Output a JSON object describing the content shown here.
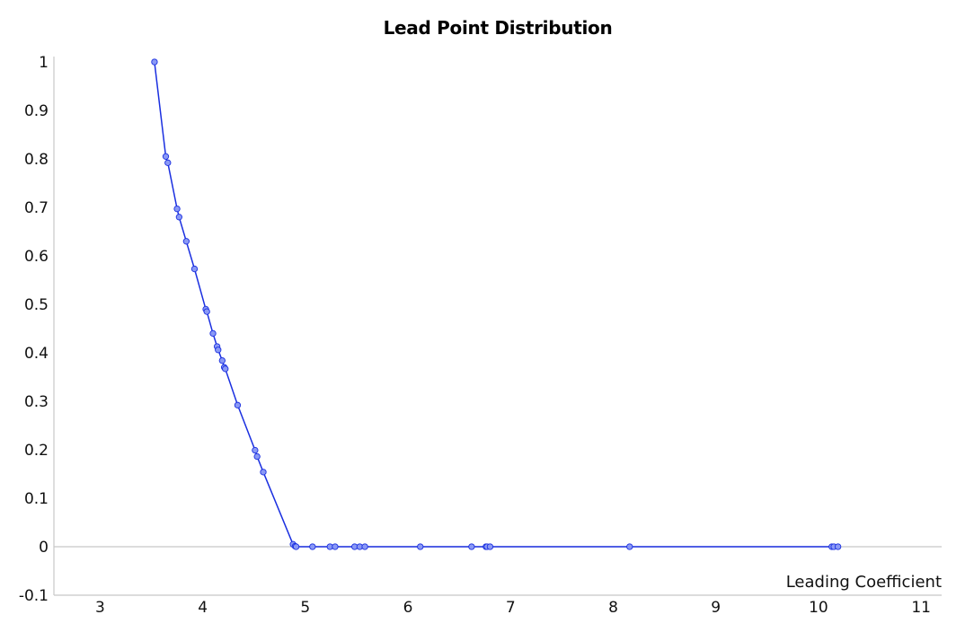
{
  "chart_data": {
    "type": "line",
    "title": "Lead Point Distribution",
    "xlabel": "Leading Coefficient",
    "ylabel": "",
    "xlim": [
      2.55,
      11.2
    ],
    "ylim": [
      -0.1,
      1.0
    ],
    "xticks": [
      "3",
      "4",
      "5",
      "6",
      "7",
      "8",
      "9",
      "10",
      "11"
    ],
    "yticks": [
      "1",
      "0.9",
      "0.8",
      "0.7",
      "0.6",
      "0.5",
      "0.4",
      "0.3",
      "0.2",
      "0.1",
      "0",
      "-0.1"
    ],
    "grid": false,
    "legend": "none",
    "markers": true,
    "series": [
      {
        "color": "#1a2fe0",
        "marker_color": "#8a99f5",
        "x": [
          3.53,
          3.64,
          3.66,
          3.75,
          3.77,
          3.84,
          3.92,
          4.03,
          4.04,
          4.1,
          4.14,
          4.15,
          4.19,
          4.21,
          4.22,
          4.34,
          4.51,
          4.53,
          4.59,
          4.88,
          4.9,
          4.91,
          5.07,
          5.24,
          5.29,
          5.48,
          5.53,
          5.58,
          6.12,
          6.62,
          6.76,
          6.77,
          6.8,
          8.16,
          10.13,
          10.15,
          10.19
        ],
        "y": [
          1.0,
          0.805,
          0.792,
          0.697,
          0.68,
          0.63,
          0.573,
          0.49,
          0.485,
          0.44,
          0.413,
          0.406,
          0.384,
          0.37,
          0.367,
          0.292,
          0.199,
          0.186,
          0.154,
          0.005,
          0.001,
          0.0,
          0.0,
          0.0,
          0.0,
          0.0,
          0.0,
          0.0,
          0.0,
          0.0,
          0.0,
          0.0,
          0.0,
          0.0,
          0.0,
          0.0,
          0.0
        ]
      }
    ]
  }
}
